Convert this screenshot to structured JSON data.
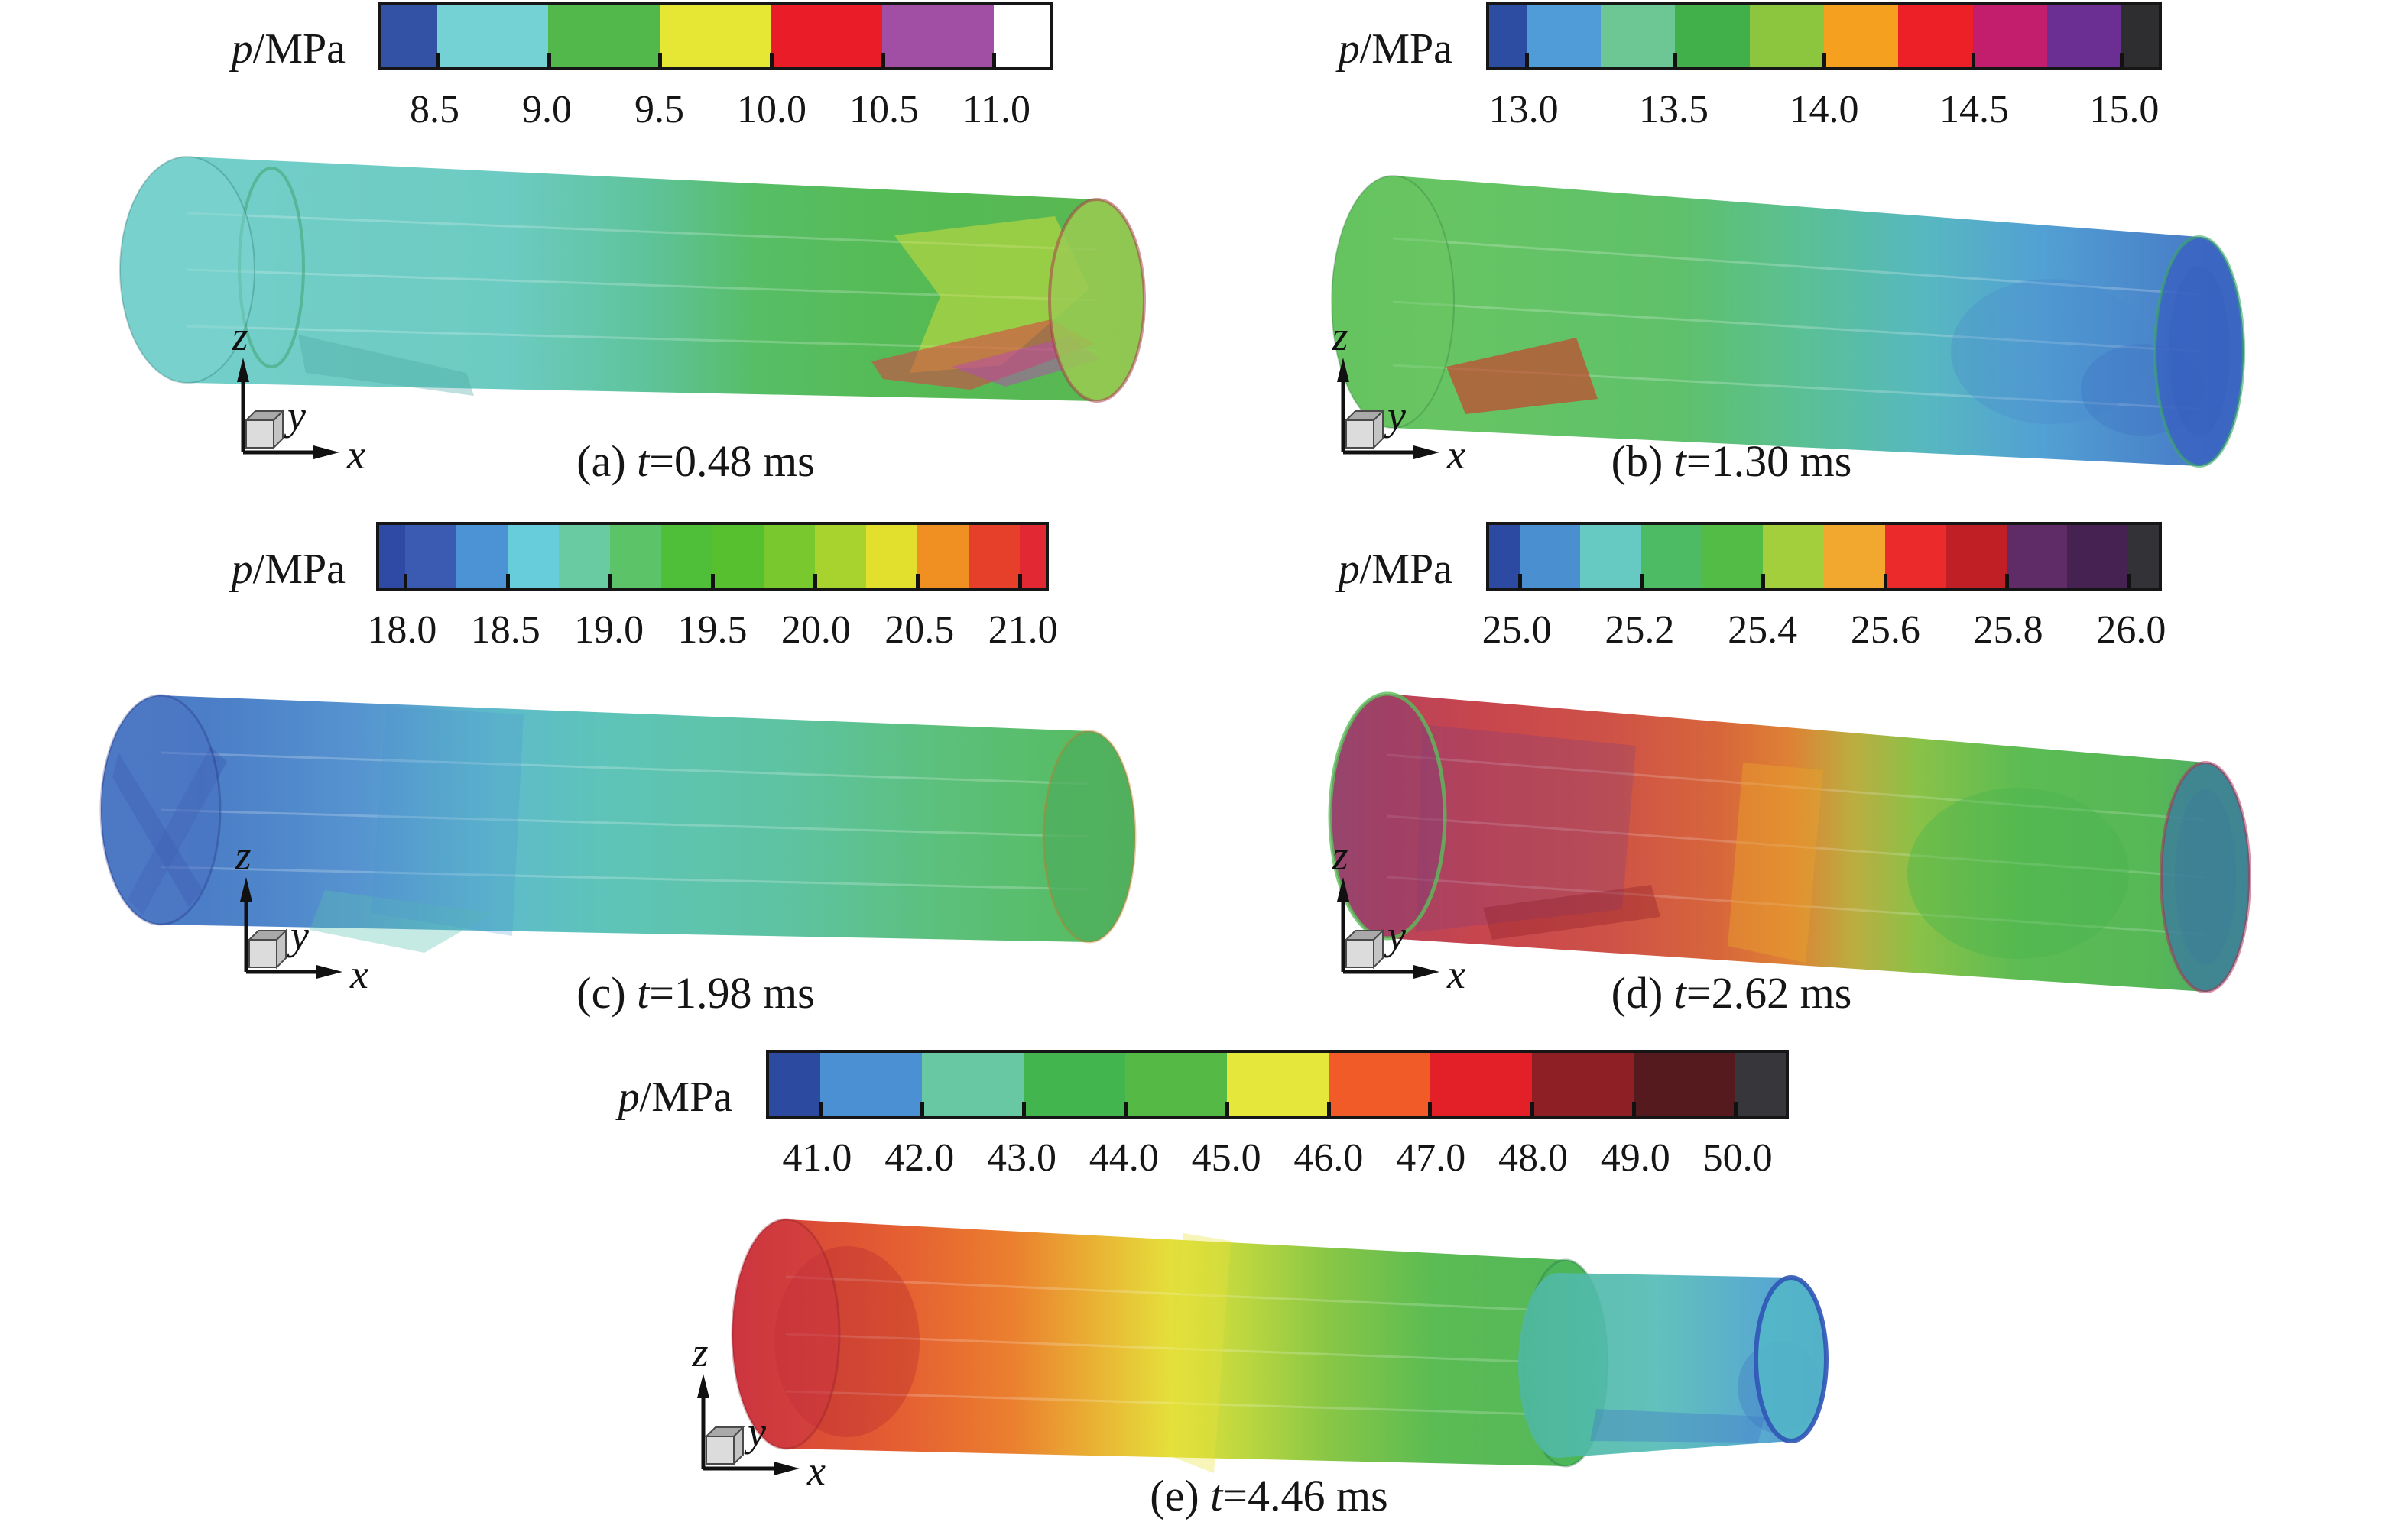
{
  "pressure_label": {
    "italic": "p",
    "rest": "/MPa"
  },
  "axis_labels": {
    "z": "z",
    "y": "y",
    "x": "x"
  },
  "figures": [
    {
      "id": "a",
      "caption": {
        "prefix": "(a) ",
        "var": "t",
        "suffix": "=0.48 ms"
      },
      "colorbar": {
        "segments": [
          {
            "color": "#3351a5",
            "span": 0.5
          },
          {
            "color": "#74d1d4",
            "span": 1
          },
          {
            "color": "#53b84b",
            "span": 1
          },
          {
            "color": "#e6e735",
            "span": 1
          },
          {
            "color": "#ea1c27",
            "span": 1
          },
          {
            "color": "#a14fa5",
            "span": 1
          },
          {
            "color": "#ffffff",
            "span": 0.5
          }
        ],
        "ticks": [
          {
            "label": "8.5",
            "boundary": 1
          },
          {
            "label": "9.0",
            "boundary": 2
          },
          {
            "label": "9.5",
            "boundary": 3
          },
          {
            "label": "10.0",
            "boundary": 4
          },
          {
            "label": "10.5",
            "boundary": 5
          },
          {
            "label": "11.0",
            "boundary": 6
          }
        ]
      },
      "cylinder": {
        "gradients": [
          {
            "id": "grad-a",
            "stops": [
              [
                0,
                "#6fcdc9"
              ],
              [
                0.38,
                "#66c9bf"
              ],
              [
                0.52,
                "#57c094"
              ],
              [
                0.62,
                "#50bb60"
              ],
              [
                0.75,
                "#4eb84e"
              ],
              [
                1,
                "#52b44a"
              ]
            ]
          }
        ],
        "caps": {
          "left": "#7dd3d0",
          "right": "#9aca52"
        }
      }
    },
    {
      "id": "b",
      "caption": {
        "prefix": "(b) ",
        "var": "t",
        "suffix": "=1.30 ms"
      },
      "colorbar": {
        "segments": [
          {
            "color": "#2c4da2",
            "span": 0.5
          },
          {
            "color": "#4f9cd9",
            "span": 1
          },
          {
            "color": "#6cc795",
            "span": 1
          },
          {
            "color": "#42b04a",
            "span": 1
          },
          {
            "color": "#8cc63f",
            "span": 1
          },
          {
            "color": "#f5a11f",
            "span": 1
          },
          {
            "color": "#ec2026",
            "span": 1
          },
          {
            "color": "#c21e6d",
            "span": 1
          },
          {
            "color": "#6b2e92",
            "span": 1
          },
          {
            "color": "#2e2d2f",
            "span": 0.5
          }
        ],
        "ticks": [
          {
            "label": "13.0",
            "boundary": 1
          },
          {
            "label": "13.5",
            "boundary": 3
          },
          {
            "label": "14.0",
            "boundary": 5
          },
          {
            "label": "14.5",
            "boundary": 7
          },
          {
            "label": "15.0",
            "boundary": 9
          }
        ]
      },
      "cylinder": {
        "gradients": [
          {
            "id": "grad-b",
            "stops": [
              [
                0,
                "#5abf57"
              ],
              [
                0.12,
                "#60c25c"
              ],
              [
                0.38,
                "#58be64"
              ],
              [
                0.52,
                "#53bd92"
              ],
              [
                0.65,
                "#50b5bd"
              ],
              [
                0.78,
                "#4b9cd2"
              ],
              [
                0.9,
                "#4381c8"
              ],
              [
                1,
                "#3f6fc2"
              ]
            ]
          }
        ],
        "caps": {
          "left": "#69c561",
          "right": "#3a64c2"
        }
      }
    },
    {
      "id": "c",
      "caption": {
        "prefix": "(c) ",
        "var": "t",
        "suffix": "=1.98 ms"
      },
      "colorbar": {
        "segments": [
          {
            "color": "#2e4aa4",
            "span": 0.5
          },
          {
            "color": "#3a5bb1",
            "span": 1
          },
          {
            "color": "#4b93d5",
            "span": 1
          },
          {
            "color": "#68cdda",
            "span": 1
          },
          {
            "color": "#69cba1",
            "span": 1
          },
          {
            "color": "#5dc368",
            "span": 1
          },
          {
            "color": "#4fbf3a",
            "span": 1
          },
          {
            "color": "#57c02f",
            "span": 1
          },
          {
            "color": "#79c82e",
            "span": 1
          },
          {
            "color": "#a8d32f",
            "span": 1
          },
          {
            "color": "#e3e02d",
            "span": 1
          },
          {
            "color": "#f09022",
            "span": 1
          },
          {
            "color": "#e6402a",
            "span": 1
          },
          {
            "color": "#e22833",
            "span": 0.5
          }
        ],
        "ticks": [
          {
            "label": "18.0",
            "boundary": 1
          },
          {
            "label": "18.5",
            "boundary": 3
          },
          {
            "label": "19.0",
            "boundary": 5
          },
          {
            "label": "19.5",
            "boundary": 7
          },
          {
            "label": "20.0",
            "boundary": 9
          },
          {
            "label": "20.5",
            "boundary": 11
          },
          {
            "label": "21.0",
            "boundary": 13
          }
        ]
      },
      "cylinder": {
        "gradients": [
          {
            "id": "grad-c",
            "stops": [
              [
                0,
                "#4a7cc6"
              ],
              [
                0.1,
                "#4378c4"
              ],
              [
                0.25,
                "#4f8fce"
              ],
              [
                0.38,
                "#57b8c8"
              ],
              [
                0.5,
                "#58c2b4"
              ],
              [
                0.68,
                "#57c09a"
              ],
              [
                0.82,
                "#55bd74"
              ],
              [
                1,
                "#4eb854"
              ]
            ]
          }
        ],
        "caps": {
          "left": "#4a6fc0",
          "right": "#4fae5e"
        }
      }
    },
    {
      "id": "d",
      "caption": {
        "prefix": "(d) ",
        "var": "t",
        "suffix": "=2.62 ms"
      },
      "colorbar": {
        "segments": [
          {
            "color": "#2c4aa1",
            "span": 0.5
          },
          {
            "color": "#4a8fd0",
            "span": 1
          },
          {
            "color": "#66c9c2",
            "span": 1
          },
          {
            "color": "#4cbb64",
            "span": 1
          },
          {
            "color": "#52bc47",
            "span": 1
          },
          {
            "color": "#a2cf3b",
            "span": 1
          },
          {
            "color": "#f2a72e",
            "span": 1
          },
          {
            "color": "#ea2a2b",
            "span": 1
          },
          {
            "color": "#c11f26",
            "span": 1
          },
          {
            "color": "#5f2c68",
            "span": 1
          },
          {
            "color": "#452251",
            "span": 1
          },
          {
            "color": "#333236",
            "span": 0.5
          }
        ],
        "ticks": [
          {
            "label": "25.0",
            "boundary": 1
          },
          {
            "label": "25.2",
            "boundary": 3
          },
          {
            "label": "25.4",
            "boundary": 5
          },
          {
            "label": "25.6",
            "boundary": 7
          },
          {
            "label": "25.8",
            "boundary": 9
          },
          {
            "label": "26.0",
            "boundary": 11
          }
        ]
      },
      "cylinder": {
        "gradients": [
          {
            "id": "grad-d",
            "stops": [
              [
                0,
                "#a04468"
              ],
              [
                0.06,
                "#b63a52"
              ],
              [
                0.16,
                "#c53e46"
              ],
              [
                0.3,
                "#cc4a40"
              ],
              [
                0.42,
                "#d55f33"
              ],
              [
                0.5,
                "#dd7c2c"
              ],
              [
                0.57,
                "#b8aa38"
              ],
              [
                0.64,
                "#84bf40"
              ],
              [
                0.75,
                "#55b94c"
              ],
              [
                0.9,
                "#4fb450"
              ],
              [
                1,
                "#44a06d"
              ]
            ]
          }
        ],
        "caps": {
          "left": "#8c4070",
          "right": "#3d7f99"
        }
      }
    },
    {
      "id": "e",
      "caption": {
        "prefix": "(e) ",
        "var": "t",
        "suffix": "=4.46 ms"
      },
      "colorbar": {
        "segments": [
          {
            "color": "#2b4aa0",
            "span": 0.5
          },
          {
            "color": "#4a90d2",
            "span": 1
          },
          {
            "color": "#67c8a3",
            "span": 1
          },
          {
            "color": "#42b54e",
            "span": 1
          },
          {
            "color": "#55ba45",
            "span": 1
          },
          {
            "color": "#e5e73a",
            "span": 1
          },
          {
            "color": "#f15b27",
            "span": 1
          },
          {
            "color": "#e31f27",
            "span": 1
          },
          {
            "color": "#8e2025",
            "span": 1
          },
          {
            "color": "#541a1d",
            "span": 1
          },
          {
            "color": "#37363a",
            "span": 0.5
          }
        ],
        "ticks": [
          {
            "label": "41.0",
            "boundary": 1
          },
          {
            "label": "42.0",
            "boundary": 2
          },
          {
            "label": "43.0",
            "boundary": 3
          },
          {
            "label": "44.0",
            "boundary": 4
          },
          {
            "label": "45.0",
            "boundary": 5
          },
          {
            "label": "46.0",
            "boundary": 6
          },
          {
            "label": "47.0",
            "boundary": 7
          },
          {
            "label": "48.0",
            "boundary": 8
          },
          {
            "label": "49.0",
            "boundary": 9
          },
          {
            "label": "50.0",
            "boundary": 10
          }
        ]
      },
      "cylinder": {
        "gradients": [
          {
            "id": "grad-e1",
            "stops": [
              [
                0,
                "#cd2d36"
              ],
              [
                0.08,
                "#d8432f"
              ],
              [
                0.2,
                "#e45a29"
              ],
              [
                0.32,
                "#ea7a26"
              ],
              [
                0.42,
                "#e8b22c"
              ],
              [
                0.5,
                "#e3de33"
              ],
              [
                0.58,
                "#bcd637"
              ],
              [
                0.68,
                "#84c43e"
              ],
              [
                0.8,
                "#54b94c"
              ],
              [
                1,
                "#4cb455"
              ]
            ]
          },
          {
            "id": "grad-e2",
            "stops": [
              [
                0,
                "#4fb89e"
              ],
              [
                0.45,
                "#54bcb6"
              ],
              [
                0.8,
                "#4aa2cc"
              ],
              [
                1,
                "#4280c6"
              ]
            ]
          }
        ],
        "caps": {
          "left": "#c93341",
          "mid": "#4ab558",
          "right": "#54b8c8"
        }
      }
    }
  ]
}
